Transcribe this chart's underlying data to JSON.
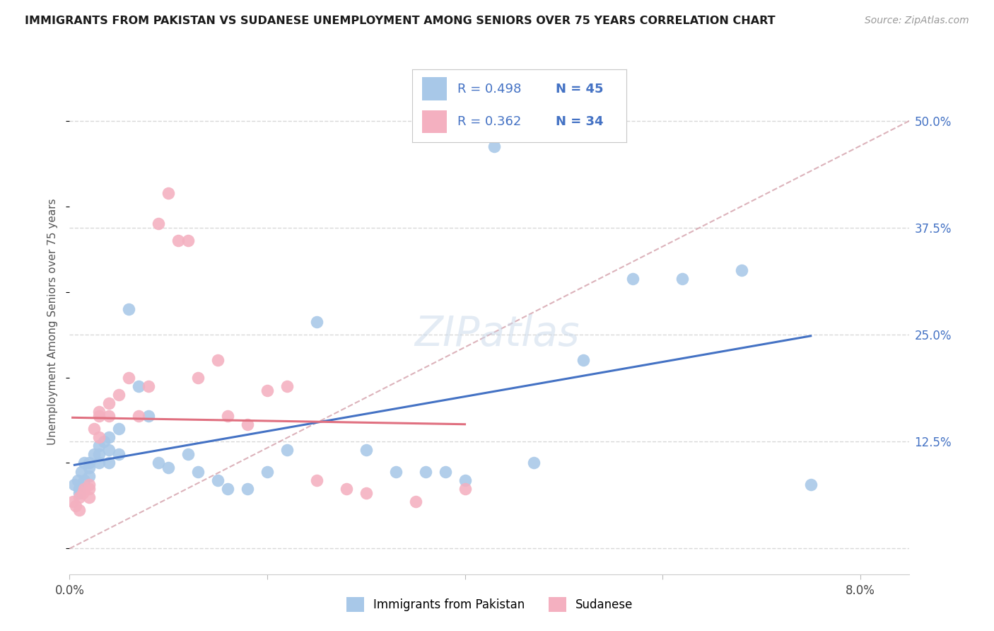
{
  "title": "IMMIGRANTS FROM PAKISTAN VS SUDANESE UNEMPLOYMENT AMONG SENIORS OVER 75 YEARS CORRELATION CHART",
  "source": "Source: ZipAtlas.com",
  "ylabel": "Unemployment Among Seniors over 75 years",
  "xlim": [
    0.0,
    0.085
  ],
  "ylim": [
    -0.03,
    0.56
  ],
  "color_pakistan": "#a8c8e8",
  "color_sudanese": "#f4b0c0",
  "color_line_pakistan": "#4472c4",
  "color_line_sudanese": "#e07080",
  "color_diag": "#d0a0a8",
  "color_legend_text": "#4472c4",
  "background_color": "#ffffff",
  "grid_color": "#d8d8d8",
  "pakistan_x": [
    0.0005,
    0.0008,
    0.001,
    0.001,
    0.0012,
    0.0015,
    0.0015,
    0.002,
    0.002,
    0.002,
    0.0025,
    0.003,
    0.003,
    0.003,
    0.0035,
    0.004,
    0.004,
    0.004,
    0.005,
    0.005,
    0.006,
    0.007,
    0.008,
    0.009,
    0.01,
    0.012,
    0.013,
    0.015,
    0.016,
    0.018,
    0.02,
    0.022,
    0.025,
    0.03,
    0.033,
    0.036,
    0.038,
    0.04,
    0.043,
    0.047,
    0.052,
    0.057,
    0.062,
    0.068,
    0.075
  ],
  "pakistan_y": [
    0.075,
    0.08,
    0.065,
    0.07,
    0.09,
    0.08,
    0.1,
    0.085,
    0.095,
    0.1,
    0.11,
    0.1,
    0.11,
    0.12,
    0.125,
    0.13,
    0.115,
    0.1,
    0.14,
    0.11,
    0.28,
    0.19,
    0.155,
    0.1,
    0.095,
    0.11,
    0.09,
    0.08,
    0.07,
    0.07,
    0.09,
    0.115,
    0.265,
    0.115,
    0.09,
    0.09,
    0.09,
    0.08,
    0.47,
    0.1,
    0.22,
    0.315,
    0.315,
    0.325,
    0.075
  ],
  "sudanese_x": [
    0.0003,
    0.0006,
    0.001,
    0.001,
    0.0013,
    0.0015,
    0.002,
    0.002,
    0.002,
    0.0025,
    0.003,
    0.003,
    0.003,
    0.004,
    0.004,
    0.005,
    0.006,
    0.007,
    0.008,
    0.009,
    0.01,
    0.011,
    0.012,
    0.013,
    0.015,
    0.016,
    0.018,
    0.02,
    0.022,
    0.025,
    0.028,
    0.03,
    0.035,
    0.04
  ],
  "sudanese_y": [
    0.055,
    0.05,
    0.06,
    0.045,
    0.065,
    0.07,
    0.07,
    0.075,
    0.06,
    0.14,
    0.13,
    0.155,
    0.16,
    0.17,
    0.155,
    0.18,
    0.2,
    0.155,
    0.19,
    0.38,
    0.415,
    0.36,
    0.36,
    0.2,
    0.22,
    0.155,
    0.145,
    0.185,
    0.19,
    0.08,
    0.07,
    0.065,
    0.055,
    0.07
  ],
  "grid_yticks": [
    0.0,
    0.125,
    0.25,
    0.375,
    0.5
  ],
  "ytick_labels_right": [
    "",
    "12.5%",
    "25.0%",
    "37.5%",
    "50.0%"
  ],
  "xticks": [
    0.0,
    0.02,
    0.04,
    0.06,
    0.08
  ],
  "xtick_labels": [
    "0.0%",
    "",
    "",
    "",
    "8.0%"
  ]
}
